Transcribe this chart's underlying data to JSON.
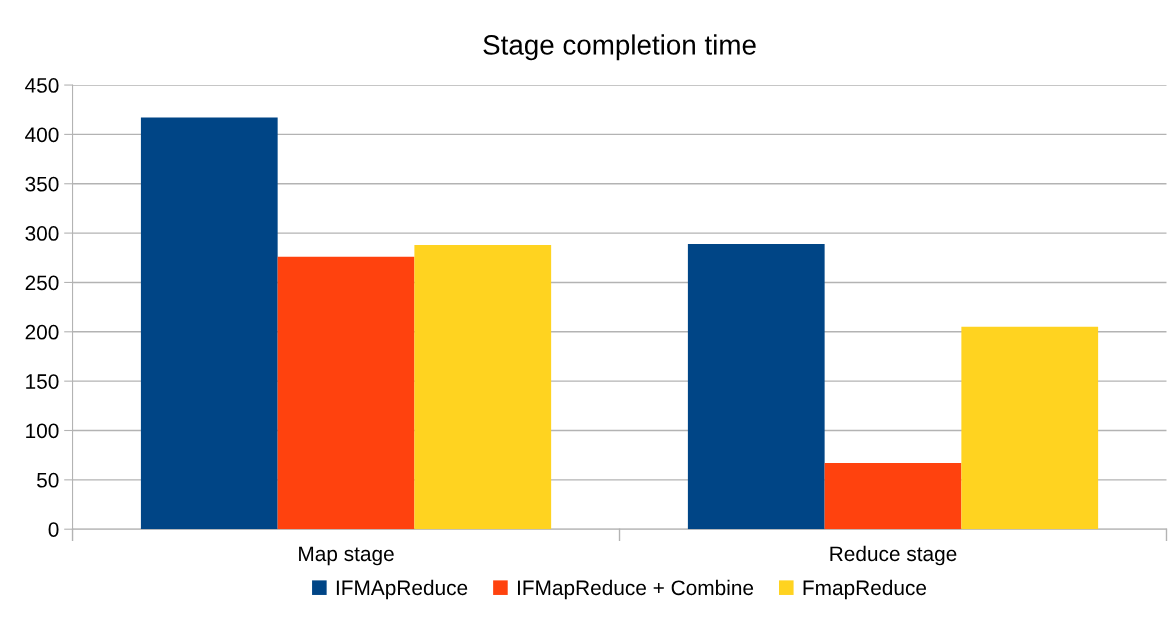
{
  "chart_data": {
    "type": "bar",
    "title": "Stage completion time",
    "categories": [
      "Map stage",
      "Reduce stage"
    ],
    "series": [
      {
        "name": "IFMApReduce",
        "color": "#004586",
        "values": [
          417,
          289
        ]
      },
      {
        "name": "IFMapReduce + Combine",
        "color": "#ff420e",
        "values": [
          276,
          67
        ]
      },
      {
        "name": "FmapReduce",
        "color": "#ffd320",
        "values": [
          288,
          205
        ]
      }
    ],
    "ylim": [
      0,
      450
    ],
    "yticks": [
      0,
      50,
      100,
      150,
      200,
      250,
      300,
      350,
      400,
      450
    ],
    "grid": "y",
    "legend": "bottom"
  }
}
